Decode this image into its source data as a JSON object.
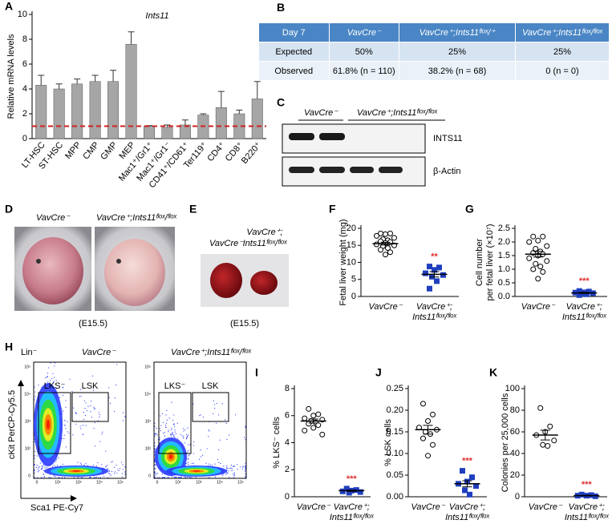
{
  "chart_data": [
    {
      "panel": "A",
      "type": "bar",
      "title": "Ints11",
      "ylabel": "Relative mRNA levels",
      "categories": [
        "LT-HSC",
        "ST-HSC",
        "MPP",
        "CMP",
        "GMP",
        "MEP",
        "Mac1⁺/Gr1⁺",
        "Mac1⁺/Gr1⁻",
        "CD41⁺/CD61⁺",
        "Ter119⁺",
        "CD4⁺",
        "CD8⁺",
        "B220⁺"
      ],
      "values": [
        4.3,
        4.0,
        4.4,
        4.6,
        4.6,
        7.6,
        1.0,
        0.9,
        1.1,
        1.9,
        2.5,
        2.0,
        3.2
      ],
      "errors": [
        0.8,
        0.4,
        0.4,
        0.5,
        0.9,
        1.0,
        0.05,
        0.2,
        0.4,
        0.1,
        1.3,
        0.3,
        1.4
      ],
      "color": "#a6a6a6",
      "reference_line": 1,
      "reference_color": "#d11f1f",
      "ylim": [
        0,
        10
      ],
      "yticks": [
        0,
        2,
        4,
        6,
        8,
        10
      ]
    },
    {
      "panel": "F",
      "type": "dot",
      "ylabel": "Fetal liver weight (mg)",
      "categories": [
        [
          "VavCre⁻"
        ],
        [
          "VavCre⁺;",
          "Ints11ᶠˡᵒˣ/ᶠˡᵒˣ"
        ]
      ],
      "ylim": [
        0,
        20
      ],
      "yticks": [
        0,
        5,
        10,
        15,
        20
      ],
      "groups": [
        {
          "values": [
            18.5,
            18.5,
            18.3,
            17.8,
            17.2,
            16.8,
            16.5,
            16.2,
            16.0,
            15.7,
            15.3,
            15.0,
            14.8,
            14.2,
            13.7,
            13.0,
            12.3
          ],
          "mean": 15.5,
          "error": 0.4,
          "marker": "circle",
          "color": "#000000",
          "fill": "#ffffff"
        },
        {
          "values": [
            8.8,
            8.5,
            7.8,
            6.8,
            6.3,
            5.8,
            4.5,
            2.3
          ],
          "mean": 6.5,
          "error": 0.8,
          "marker": "square",
          "color": "#1f3fbf",
          "fill": "#1f3fbf",
          "significance": "**",
          "sig_color": "#e0302f"
        }
      ]
    },
    {
      "panel": "G",
      "type": "dot",
      "ylabel": [
        "Cell number",
        "per fetal liver (×10⁷)"
      ],
      "categories": [
        [
          "VavCre⁻"
        ],
        [
          "VavCre⁺;",
          "Ints11ᶠˡᵒˣ/ᶠˡᵒˣ"
        ]
      ],
      "ylim": [
        0,
        2.5
      ],
      "yticks": [
        {
          "value": 0,
          "label": "0.0"
        },
        0.5,
        {
          "value": 1,
          "label": "1.0"
        },
        1.5,
        {
          "value": 2,
          "label": "2.0"
        },
        2.5
      ],
      "groups": [
        {
          "values": [
            2.2,
            2.2,
            2.05,
            2.0,
            1.85,
            1.75,
            1.65,
            1.6,
            1.55,
            1.5,
            1.4,
            1.3,
            1.2,
            1.1,
            1.0,
            0.9,
            0.65
          ],
          "mean": 1.55,
          "error": 0.1,
          "marker": "circle",
          "color": "#000000",
          "fill": "#ffffff"
        },
        {
          "values": [
            0.2,
            0.18,
            0.15,
            0.14,
            0.12,
            0.1,
            0.08,
            0.05
          ],
          "mean": 0.13,
          "error": 0.02,
          "marker": "square",
          "color": "#1f3fbf",
          "fill": "#1f3fbf",
          "significance": "***",
          "sig_color": "#e0302f"
        }
      ]
    },
    {
      "panel": "I",
      "type": "dot",
      "ylabel": "% LKS⁻ cells",
      "categories": [
        [
          "VavCre⁻"
        ],
        [
          "VavCre⁺;",
          "Ints11ᶠˡᵒˣ/ᶠˡᵒˣ"
        ]
      ],
      "ylim": [
        0,
        8
      ],
      "yticks": [
        0,
        2,
        4,
        6,
        8
      ],
      "groups": [
        {
          "values": [
            6.5,
            6.1,
            6.0,
            5.8,
            5.7,
            5.6,
            5.5,
            5.4,
            5.3,
            5.1,
            4.9,
            4.6
          ],
          "mean": 5.6,
          "error": 0.15,
          "marker": "circle",
          "color": "#000000",
          "fill": "#ffffff"
        },
        {
          "values": [
            0.6,
            0.5,
            0.45,
            0.4,
            0.35,
            0.3
          ],
          "mean": 0.45,
          "error": 0.05,
          "marker": "square",
          "color": "#1f3fbf",
          "fill": "#1f3fbf",
          "significance": "***",
          "sig_color": "#e0302f"
        }
      ]
    },
    {
      "panel": "J",
      "type": "dot",
      "ylabel": "% LSK cells",
      "categories": [
        [
          "VavCre⁻"
        ],
        [
          "VavCre⁺;",
          "Ints11ᶠˡᵒˣ/ᶠˡᵒˣ"
        ]
      ],
      "ylim": [
        0,
        0.25
      ],
      "yticks": [
        {
          "value": 0,
          "label": "0.00"
        },
        0.05,
        {
          "value": 0.1,
          "label": "0.10"
        },
        0.15,
        {
          "value": 0.2,
          "label": "0.20"
        },
        0.25
      ],
      "groups": [
        {
          "values": [
            0.215,
            0.19,
            0.175,
            0.16,
            0.155,
            0.15,
            0.145,
            0.135,
            0.12,
            0.095
          ],
          "mean": 0.155,
          "error": 0.01,
          "marker": "circle",
          "color": "#000000",
          "fill": "#ffffff"
        },
        {
          "values": [
            0.06,
            0.045,
            0.035,
            0.03,
            0.025,
            0.015,
            0.005
          ],
          "mean": 0.03,
          "error": 0.007,
          "marker": "square",
          "color": "#1f3fbf",
          "fill": "#1f3fbf",
          "significance": "***",
          "sig_color": "#e0302f"
        }
      ]
    },
    {
      "panel": "K",
      "type": "dot",
      "ylabel": "Colonies per 25,000 cells",
      "categories": [
        [
          "VavCre⁻"
        ],
        [
          "VavCre⁺;",
          "Ints11ᶠˡᵒˣ/ᶠˡᵒˣ"
        ]
      ],
      "ylim": [
        0,
        100
      ],
      "yticks": [
        0,
        20,
        40,
        60,
        80,
        100
      ],
      "groups": [
        {
          "values": [
            82,
            65,
            60,
            57,
            52,
            48,
            47
          ],
          "mean": 57,
          "error": 4.5,
          "marker": "circle",
          "color": "#000000",
          "fill": "#ffffff"
        },
        {
          "values": [
            2,
            1.5,
            1,
            1,
            0.5
          ],
          "mean": 1,
          "error": 0.3,
          "marker": "square",
          "color": "#1f3fbf",
          "fill": "#1f3fbf",
          "significance": "***",
          "sig_color": "#e0302f"
        }
      ]
    }
  ],
  "table": {
    "panel": "B",
    "header": [
      "Day 7",
      "VavCre⁻",
      "VavCre⁺;Ints11ᶠˡᵒˣ/⁺",
      "VavCre⁺;Ints11ᶠˡᵒˣ/ᶠˡᵒˣ"
    ],
    "rows": [
      [
        "Expected",
        "50%",
        "25%",
        "25%"
      ],
      [
        "Observed",
        "61.8% (n = 110)",
        "38.2% (n = 68)",
        "0 (n = 0)"
      ]
    ]
  },
  "blot": {
    "panel": "C",
    "lane_labels": [
      "VavCre⁻",
      "VavCre⁺;Ints11ᶠˡᵒˣ/ᶠˡᵒˣ"
    ],
    "bands": [
      "INTS11",
      "β-Actin"
    ]
  },
  "embryo_photos": {
    "panel": "D",
    "labels": [
      "VavCre⁻",
      "VavCre⁺;Ints11ᶠˡᵒˣ/ᶠˡᵒˣ"
    ],
    "caption": "(E15.5)"
  },
  "liver_photo": {
    "panel": "E",
    "labels": [
      "VavCre⁻",
      "VavCre⁺;",
      "Ints11ᶠˡᵒˣ/ᶠˡᵒˣ"
    ],
    "caption": "(E15.5)"
  },
  "flow": {
    "panel": "H",
    "lineage": "Lin⁻",
    "y_axis": "cKit  PerCP-Cy5.5",
    "x_axis": "Sca1  PE-Cy7",
    "plots": [
      "VavCre⁻",
      "VavCre⁺;Ints11ᶠˡᵒˣ/ᶠˡᵒˣ"
    ],
    "gates": [
      "LKS⁻",
      "LSK"
    ],
    "ticks": [
      "0",
      "10²",
      "10³",
      "10⁴",
      "10⁵"
    ]
  }
}
